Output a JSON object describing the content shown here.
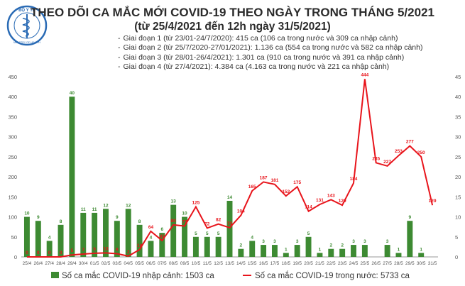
{
  "logo": {
    "org_text": "BỘ Y TẾ",
    "sub_text": "MINISTRY OF HEALTH"
  },
  "title": "THEO DÕI CA MẮC MỚI COVID-19 THEO NGÀY TRONG THÁNG 5/2021",
  "subtitle": "(từ 25/4/2021 đến 12h ngày 31/5/2021)",
  "phases": [
    "Giai đoạn 1 (từ 23/01-24/7/2020): 415 ca (106 ca trong nước và 309 ca nhập cảnh)",
    "Giai đoạn 2 (từ 25/7/2020-27/01/2021): 1.136 ca (554 ca trong nước và 582 ca nhập cảnh)",
    "Giai đoạn 3 (từ 28/01-26/4/2021): 1.301 ca (910 ca trong nước và 391 ca nhập cảnh)",
    "Giai đoạn 4 (từ 27/4/2021): 4.384 ca (4.163 ca trong nước và 221 ca nhập cảnh)"
  ],
  "colors": {
    "bar": "#3d8a32",
    "line": "#e8141b",
    "axis": "#999999",
    "text": "#333333"
  },
  "chart_data": {
    "type": "bar",
    "categories": [
      "25/4",
      "26/4",
      "27/4",
      "28/4",
      "29/4",
      "30/4",
      "01/5",
      "02/5",
      "03/5",
      "04/5",
      "05/5",
      "06/5",
      "07/5",
      "08/5",
      "09/5",
      "10/5",
      "11/5",
      "12/5",
      "13/5",
      "14/5",
      "15/5",
      "16/5",
      "17/5",
      "18/5",
      "19/5",
      "20/5",
      "21/5",
      "22/5",
      "23/5",
      "24/5",
      "25/5",
      "26/5",
      "27/5",
      "28/5",
      "29/5",
      "30/5",
      "31/5"
    ],
    "series": [
      {
        "name": "Số ca mắc COVID-19 nhập cảnh: 1503 ca",
        "type": "bar",
        "axis": "right",
        "values": [
          10,
          9,
          4,
          8,
          40,
          11,
          11,
          12,
          9,
          12,
          8,
          4,
          6,
          13,
          10,
          5,
          5,
          5,
          14,
          2,
          4,
          3,
          3,
          1,
          3,
          5,
          1,
          2,
          2,
          3,
          3,
          0,
          3,
          1,
          9,
          1,
          0
        ],
        "labels": [
          "10",
          "9",
          "4",
          "8",
          "40",
          "11",
          "11",
          "12",
          "9",
          "12",
          "8",
          "4",
          "6",
          "13",
          "10",
          "5",
          "5",
          "5",
          "14",
          "2",
          "4",
          "3",
          "3",
          "1",
          "3",
          "5",
          "1",
          "2",
          "2",
          "3",
          "3",
          "",
          "3",
          "1",
          "9",
          "1",
          ""
        ]
      },
      {
        "name": "Số ca mắc COVID-19 trong nước: 5733 ca",
        "type": "line",
        "axis": "left",
        "values": [
          0,
          0,
          0,
          0,
          5,
          7,
          9,
          10,
          8,
          2,
          18,
          64,
          41,
          80,
          77,
          125,
          72,
          82,
          73,
          104,
          165,
          187,
          181,
          152,
          175,
          114,
          131,
          143,
          129,
          184,
          444,
          235,
          227,
          253,
          277,
          250,
          129
        ],
        "labels": [
          "0",
          "0",
          "0",
          "0",
          "5",
          "7",
          "9",
          "10",
          "8",
          "2",
          "18",
          "64",
          "41",
          "80",
          "77",
          "125",
          "72",
          "82",
          "73",
          "104",
          "165",
          "187",
          "181",
          "152",
          "175",
          "114",
          "131",
          "143",
          "129",
          "184",
          "444",
          "235",
          "227",
          "253",
          "277",
          "250",
          "129"
        ]
      }
    ],
    "left_axis": {
      "ylim": [
        0,
        450
      ],
      "ticks": [
        "0",
        "50",
        "100",
        "150",
        "200",
        "250",
        "300",
        "350",
        "400",
        "450"
      ]
    },
    "right_axis": {
      "ylim": [
        0,
        45
      ],
      "ticks": [
        "0",
        "5",
        "10",
        "15",
        "20",
        "25",
        "30",
        "35",
        "40",
        "45"
      ]
    },
    "grid": false,
    "legend_position": "bottom"
  }
}
